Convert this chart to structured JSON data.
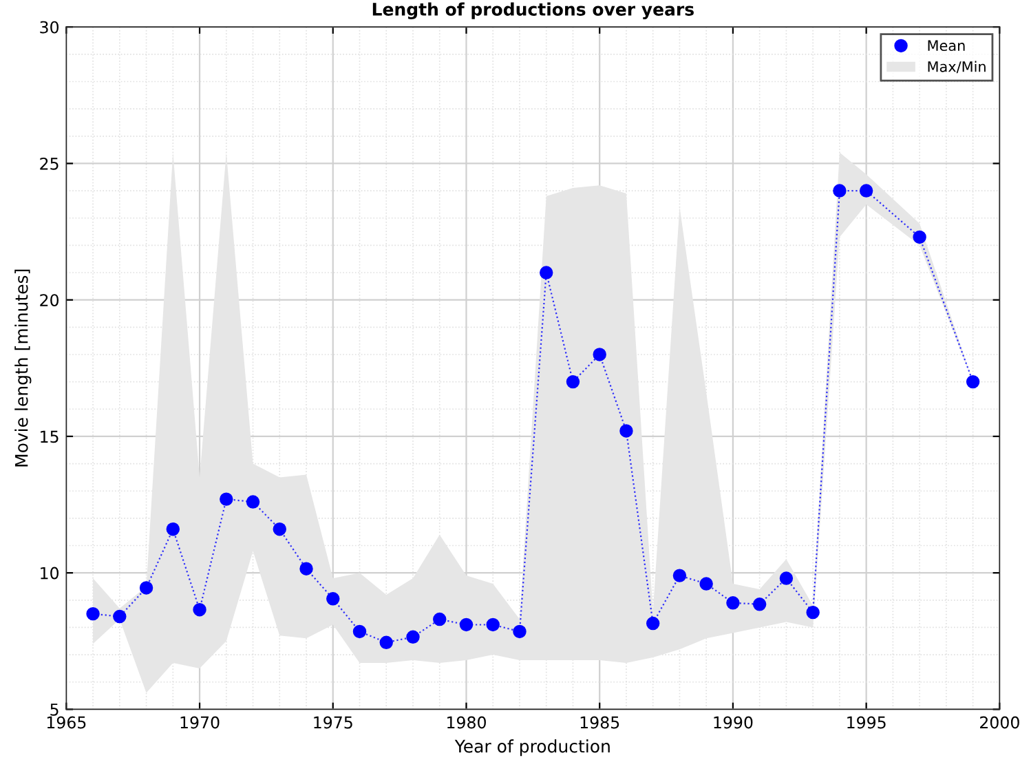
{
  "chart_data": {
    "type": "line",
    "title": "Length of productions over years",
    "xlabel": "Year of production",
    "ylabel": "Movie length [minutes]",
    "x": [
      1966,
      1967,
      1968,
      1969,
      1970,
      1971,
      1972,
      1973,
      1974,
      1975,
      1976,
      1977,
      1978,
      1979,
      1980,
      1981,
      1982,
      1983,
      1984,
      1985,
      1986,
      1987,
      1988,
      1989,
      1990,
      1991,
      1992,
      1993,
      1994,
      1995,
      1997,
      1999
    ],
    "series": [
      {
        "name": "Mean",
        "color": "#0000ff",
        "marker": "circle",
        "line_style": "dotted",
        "values": [
          8.5,
          8.4,
          9.45,
          11.6,
          8.65,
          12.7,
          12.6,
          11.6,
          10.15,
          9.05,
          7.85,
          7.45,
          7.65,
          8.3,
          8.1,
          8.1,
          7.85,
          21.0,
          17.0,
          18.0,
          15.2,
          8.15,
          9.9,
          9.6,
          8.9,
          8.85,
          9.8,
          8.55,
          24.0,
          24.0,
          22.3,
          17.0
        ],
        "upper": [
          9.8,
          8.7,
          9.5,
          25.4,
          13.5,
          25.4,
          14.0,
          13.5,
          13.6,
          9.8,
          10.0,
          9.2,
          9.8,
          11.4,
          9.9,
          9.6,
          8.3,
          23.8,
          24.1,
          24.2,
          23.9,
          8.6,
          23.4,
          16.6,
          9.6,
          9.4,
          10.5,
          8.8,
          25.4,
          24.6,
          22.8,
          17.0
        ],
        "lower": [
          7.4,
          8.3,
          5.6,
          6.7,
          6.5,
          7.5,
          10.8,
          7.7,
          7.6,
          8.1,
          6.7,
          6.7,
          6.8,
          6.7,
          6.8,
          7.0,
          6.8,
          6.8,
          6.8,
          6.8,
          6.7,
          6.9,
          7.2,
          7.6,
          7.8,
          8.0,
          8.2,
          8.0,
          22.3,
          23.5,
          22.0,
          17.0
        ]
      },
      {
        "name": "Max/Min",
        "type": "area",
        "color": "#e6e6e6",
        "values": [
          null,
          null,
          null,
          null,
          null,
          null,
          null,
          null,
          null,
          null,
          null,
          null,
          null,
          null,
          null,
          null,
          null,
          null,
          null,
          null,
          null,
          null,
          null,
          null,
          null,
          null,
          null,
          null,
          null,
          null,
          null,
          null
        ]
      }
    ],
    "xlim": [
      1965,
      2000
    ],
    "ylim": [
      5,
      30
    ],
    "xticks": [
      1965,
      1970,
      1975,
      1980,
      1985,
      1990,
      1995,
      2000
    ],
    "yticks": [
      5,
      10,
      15,
      20,
      25,
      30
    ],
    "grid": true,
    "legend": "top right"
  }
}
